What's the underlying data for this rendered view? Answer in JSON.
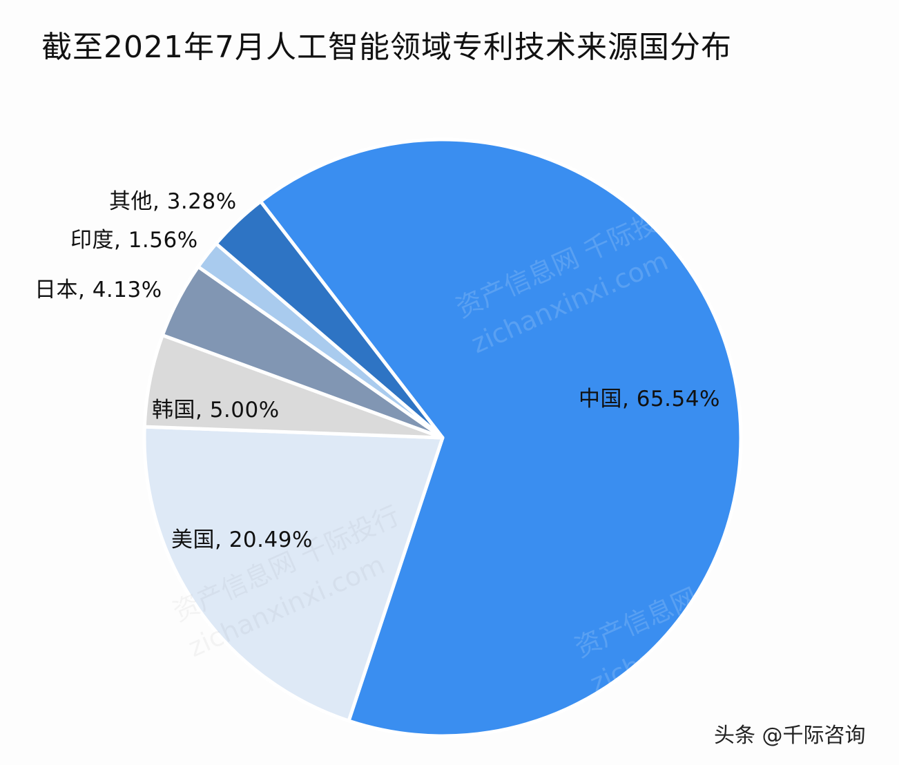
{
  "title": "截至2021年7月人工智能领域专利技术来源国分布",
  "footer": "头条 @千际咨询",
  "watermark": {
    "cn": "资产信息网 千际投行",
    "en": "zichanxinxi.com"
  },
  "labels": {
    "china": "中国, 65.54%",
    "usa": "美国, 20.49%",
    "korea": "韩国, 5.00%",
    "japan": "日本, 4.13%",
    "india": "印度, 1.56%",
    "others": "其他, 3.28%"
  },
  "chart_data": {
    "type": "pie",
    "title": "截至2021年7月人工智能领域专利技术来源国分布",
    "categories": [
      "中国",
      "美国",
      "韩国",
      "日本",
      "印度",
      "其他"
    ],
    "values": [
      65.54,
      20.49,
      5.0,
      4.13,
      1.56,
      3.28
    ],
    "unit": "%",
    "colors": [
      "#3A8EF0",
      "#DEE9F6",
      "#DADADA",
      "#8196B3",
      "#A9CBEE",
      "#2E74C4"
    ],
    "start_angle_deg_clockwise_from_top": 322.4,
    "direction": "clockwise",
    "legend": "none (labels on/near slices)"
  }
}
